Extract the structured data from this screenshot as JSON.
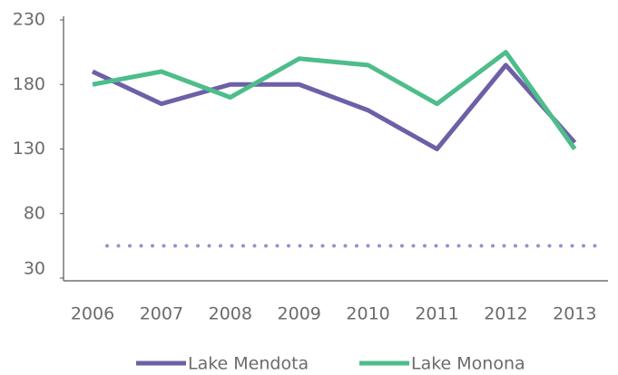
{
  "chart_data": {
    "type": "line",
    "categories": [
      "2006",
      "2007",
      "2008",
      "2009",
      "2010",
      "2011",
      "2012",
      "2013"
    ],
    "series": [
      {
        "name": "Lake Mendota",
        "color": "#6e5fa6",
        "values": [
          190,
          165,
          180,
          180,
          160,
          130,
          195,
          135
        ]
      },
      {
        "name": "Lake Monona",
        "color": "#4dbd8b",
        "values": [
          180,
          190,
          170,
          200,
          195,
          165,
          205,
          130
        ]
      }
    ],
    "reference_line": {
      "value": 55,
      "color": "#9a8fc9"
    },
    "ylim": [
      30,
      230
    ],
    "yticks": [
      30,
      80,
      130,
      180,
      230
    ],
    "grid": false,
    "legend": "bottom"
  }
}
